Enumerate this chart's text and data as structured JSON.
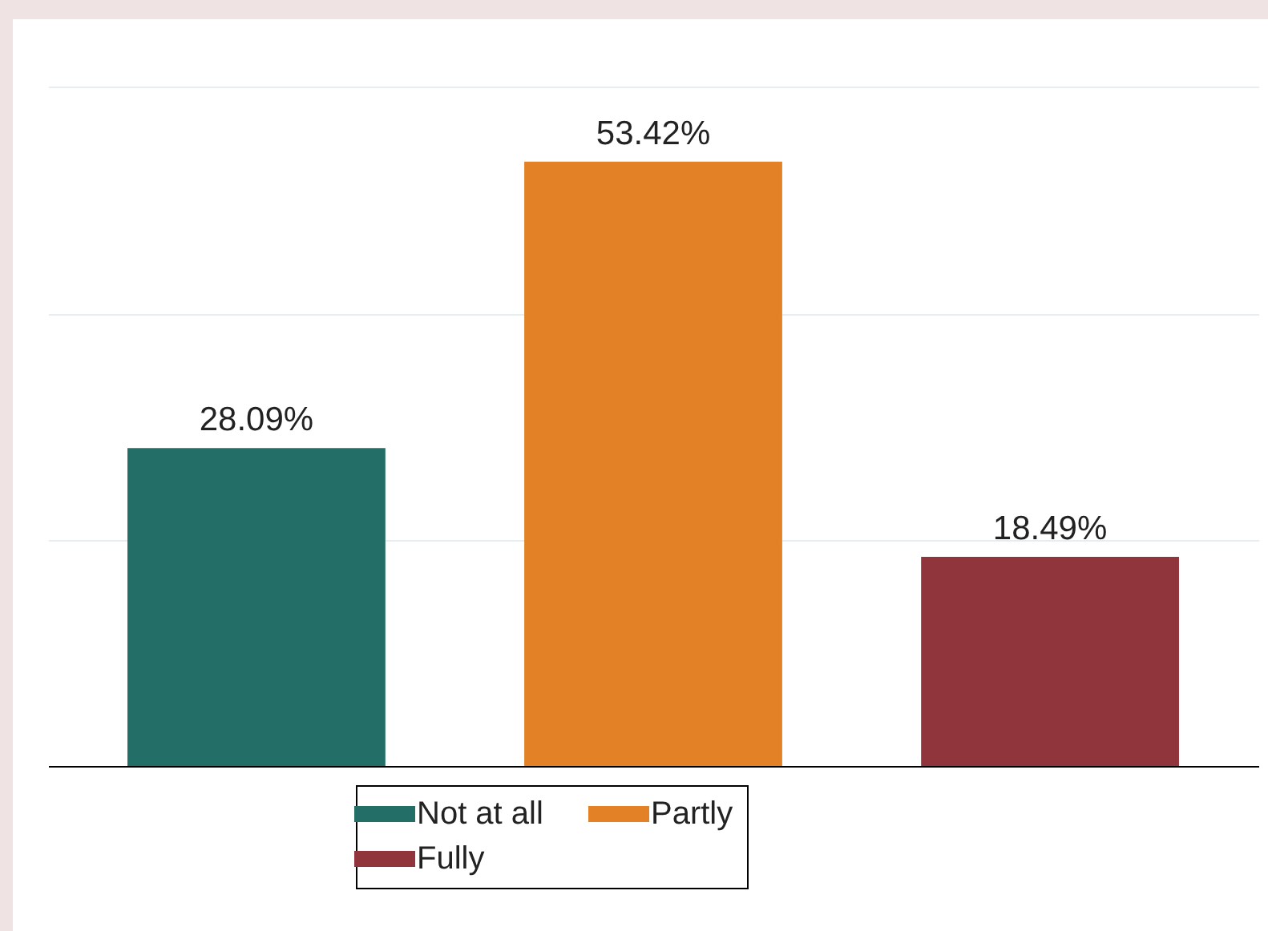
{
  "chart_data": {
    "type": "bar",
    "categories": [
      null,
      null,
      null
    ],
    "series": [
      {
        "name": "Not at all",
        "color": "#236e66",
        "values": [
          28.09,
          null,
          null
        ],
        "value_labels": [
          "28.09%",
          null,
          null
        ]
      },
      {
        "name": "Partly",
        "color": "#e28126",
        "values": [
          null,
          53.42,
          null
        ],
        "value_labels": [
          null,
          "53.42%",
          null
        ]
      },
      {
        "name": "Fully",
        "color": "#90353b",
        "values": [
          null,
          null,
          18.49
        ],
        "value_labels": [
          null,
          null,
          "18.49%"
        ]
      }
    ],
    "ylim": [
      0,
      66
    ],
    "yticks": [
      {
        "value": 0,
        "label": null
      },
      {
        "value": 20,
        "label": null
      },
      {
        "value": 40,
        "label": null
      },
      {
        "value": 60,
        "label": null
      }
    ],
    "grid": "y",
    "stacked": true,
    "legend": "bottom"
  }
}
